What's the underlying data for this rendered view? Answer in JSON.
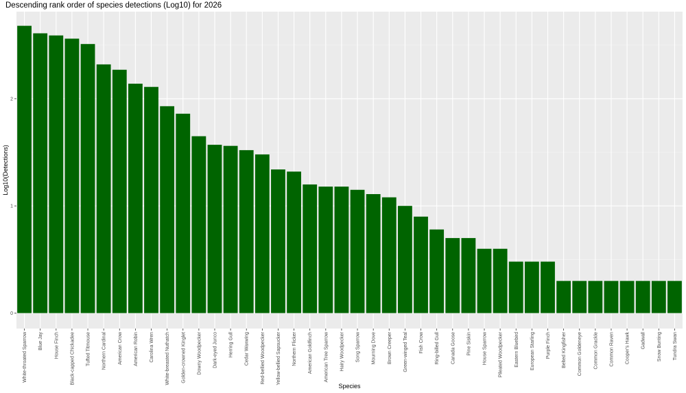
{
  "chart_data": {
    "type": "bar",
    "title": "Descending rank order of species detections (Log10) for 2026",
    "xlabel": "Species",
    "ylabel": "Log10(Detections)",
    "ylim": [
      0,
      2.8
    ],
    "yticks": [
      "0",
      "1",
      "2"
    ],
    "yticks_values": [
      0,
      1,
      2
    ],
    "grid": true,
    "bar_color": "#006400",
    "panel_color": "#ebebeb",
    "categories": [
      "White-throated Sparrow",
      "Blue Jay",
      "House Finch",
      "Black-capped Chickadee",
      "Tufted Titmouse",
      "Northern Cardinal",
      "American Crow",
      "American Robin",
      "Carolina Wren",
      "White-breasted Nuthatch",
      "Golden-crowned Kinglet",
      "Downy Woodpecker",
      "Dark-eyed Junco",
      "Herring Gull",
      "Cedar Waxwing",
      "Red-bellied Woodpecker",
      "Yellow-bellied Sapsucker",
      "Northern Flicker",
      "American Goldfinch",
      "American Tree Sparrow",
      "Hairy Woodpecker",
      "Song Sparrow",
      "Mourning Dove",
      "Brown Creeper",
      "Green-winged Teal",
      "Fish Crow",
      "Ring-billed Gull",
      "Canada Goose",
      "Pine Siskin",
      "House Sparrow",
      "Pileated Woodpecker",
      "Eastern Bluebird",
      "European Starling",
      "Purple Finch",
      "Belted Kingfisher",
      "Common Goldeneye",
      "Common Grackle",
      "Common Raven",
      "Cooper's Hawk",
      "Gadwall",
      "Snow Bunting",
      "Tundra Swan"
    ],
    "values": [
      2.68,
      2.61,
      2.59,
      2.56,
      2.51,
      2.32,
      2.27,
      2.14,
      2.11,
      1.93,
      1.86,
      1.65,
      1.57,
      1.56,
      1.52,
      1.48,
      1.34,
      1.32,
      1.2,
      1.18,
      1.18,
      1.15,
      1.11,
      1.08,
      1.0,
      0.9,
      0.78,
      0.7,
      0.7,
      0.6,
      0.6,
      0.48,
      0.48,
      0.48,
      0.3,
      0.3,
      0.3,
      0.3,
      0.3,
      0.3,
      0.3,
      0.3
    ]
  }
}
